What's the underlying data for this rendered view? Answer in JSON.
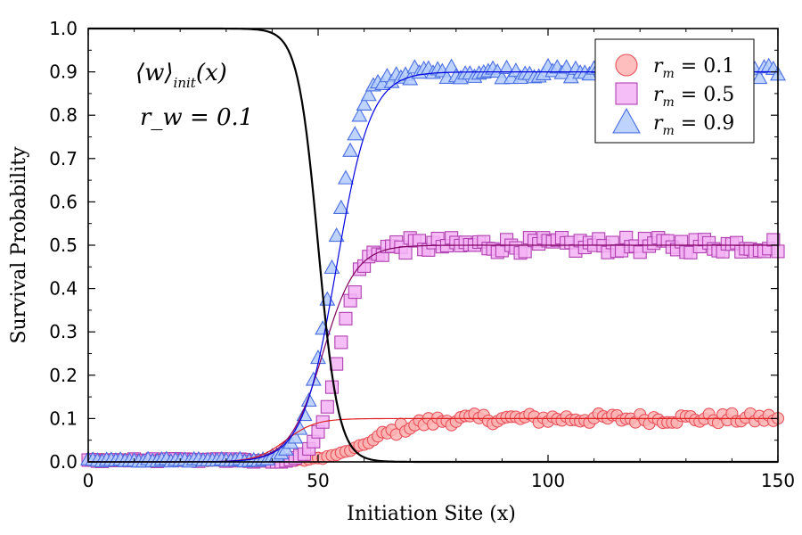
{
  "chart_data": {
    "type": "scatter",
    "xlabel": "Initiation Site (x)",
    "ylabel": "Survival Probability",
    "xlim": [
      0,
      150
    ],
    "ylim": [
      0,
      1.0
    ],
    "xticks": [
      0,
      50,
      100,
      150
    ],
    "yticks": [
      "0.0",
      "0.1",
      "0.2",
      "0.3",
      "0.4",
      "0.5",
      "0.6",
      "0.7",
      "0.8",
      "0.9",
      "1.0"
    ],
    "annotation": {
      "line1_main": "⟨w⟩",
      "line1_sub": "init",
      "line1_arg": "(x)",
      "line2": "r_w = 0.1"
    },
    "black_curve": {
      "name": "w_init",
      "center": 50,
      "width": 2.2,
      "top": 1.0
    },
    "series": [
      {
        "name": "r_m = 0.1",
        "label_var": "r",
        "label_sub": "m",
        "label_val": "= 0.1",
        "marker": "circle",
        "fill": "#ffb3b3",
        "stroke": "#e8505a",
        "plateau": 0.1,
        "fit_center": 43,
        "fit_width": 3.2,
        "rise_center": 62,
        "rise_width": 5.0,
        "noise": 0.012
      },
      {
        "name": "r_m = 0.5",
        "label_var": "r",
        "label_sub": "m",
        "label_val": "= 0.5",
        "marker": "square",
        "fill": "#f5b3f5",
        "stroke": "#b040b0",
        "plateau": 0.5,
        "fit_center": 51,
        "fit_width": 3.6,
        "rise_center": 54.5,
        "rise_width": 2.4,
        "noise": 0.018
      },
      {
        "name": "r_m = 0.9",
        "label_var": "r",
        "label_sub": "m",
        "label_val": "= 0.9",
        "marker": "triangle",
        "fill": "#b3ccff",
        "stroke": "#4a6ee0",
        "plateau": 0.9,
        "fit_center": 54,
        "fit_width": 3.7,
        "rise_center": 53,
        "rise_width": 3.0,
        "noise": 0.014
      }
    ],
    "fit_line_colors": [
      "#e02020",
      "#800060",
      "#0000e0"
    ],
    "legend_position": "top-right"
  }
}
